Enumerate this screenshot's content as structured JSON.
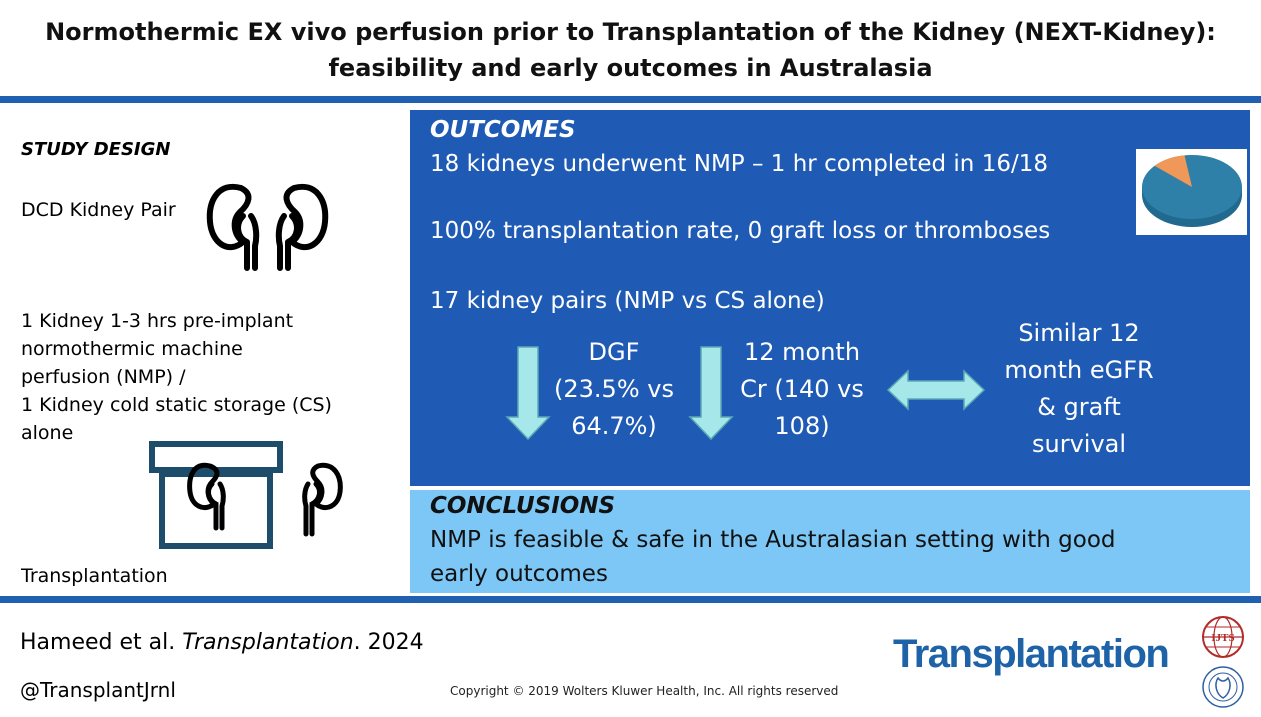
{
  "title": "Normothermic EX vivo perfusion prior to Transplantation of the Kidney (NEXT-Kidney): feasibility and early outcomes in Australasia",
  "study_design": {
    "heading": "STUDY DESIGN",
    "pair_label": "DCD Kidney Pair",
    "method_lines": [
      "1 Kidney 1-3 hrs pre-implant",
      "normothermic machine",
      "perfusion (NMP)  /",
      "1 Kidney cold static storage (CS)",
      "alone"
    ],
    "transplant_label": "Transplantation"
  },
  "outcomes": {
    "heading": "OUTCOMES",
    "line1": "18 kidneys underwent NMP – 1 hr completed in 16/18",
    "line2": "100% transplantation rate, 0 graft loss or thromboses",
    "line3": "17 kidney pairs (NMP vs CS alone)",
    "dgf_lines": [
      "DGF",
      "(23.5% vs",
      "64.7%)"
    ],
    "cr_lines": [
      "12 month",
      "Cr (140 vs",
      "108)"
    ],
    "similar_lines": [
      "Similar 12",
      "month eGFR",
      "& graft",
      "survival"
    ],
    "pie": {
      "completed": 16,
      "total": 18
    }
  },
  "conclusions": {
    "heading": "CONCLUSIONS",
    "line1": "NMP is feasible & safe in the Australasian setting with good",
    "line2": "early outcomes"
  },
  "footer": {
    "authors": "Hameed et al. ",
    "journal": "Transplantation",
    "year": ". 2024",
    "handle": "@TransplantJrnl",
    "copyright": "Copyright © 2019  Wolters Kluwer Health, Inc. All rights reserved",
    "brand": "Transplantation",
    "seal_text": "IJTS"
  },
  "colors": {
    "rule": "#2060b0",
    "outcomes_bg": "#1f5bb5",
    "conclusions_bg": "#7cc7f5",
    "arrow": "#a6e8ea",
    "pie_main": "#2f80a8",
    "pie_slice": "#f0985a",
    "brand": "#1e63a8"
  }
}
